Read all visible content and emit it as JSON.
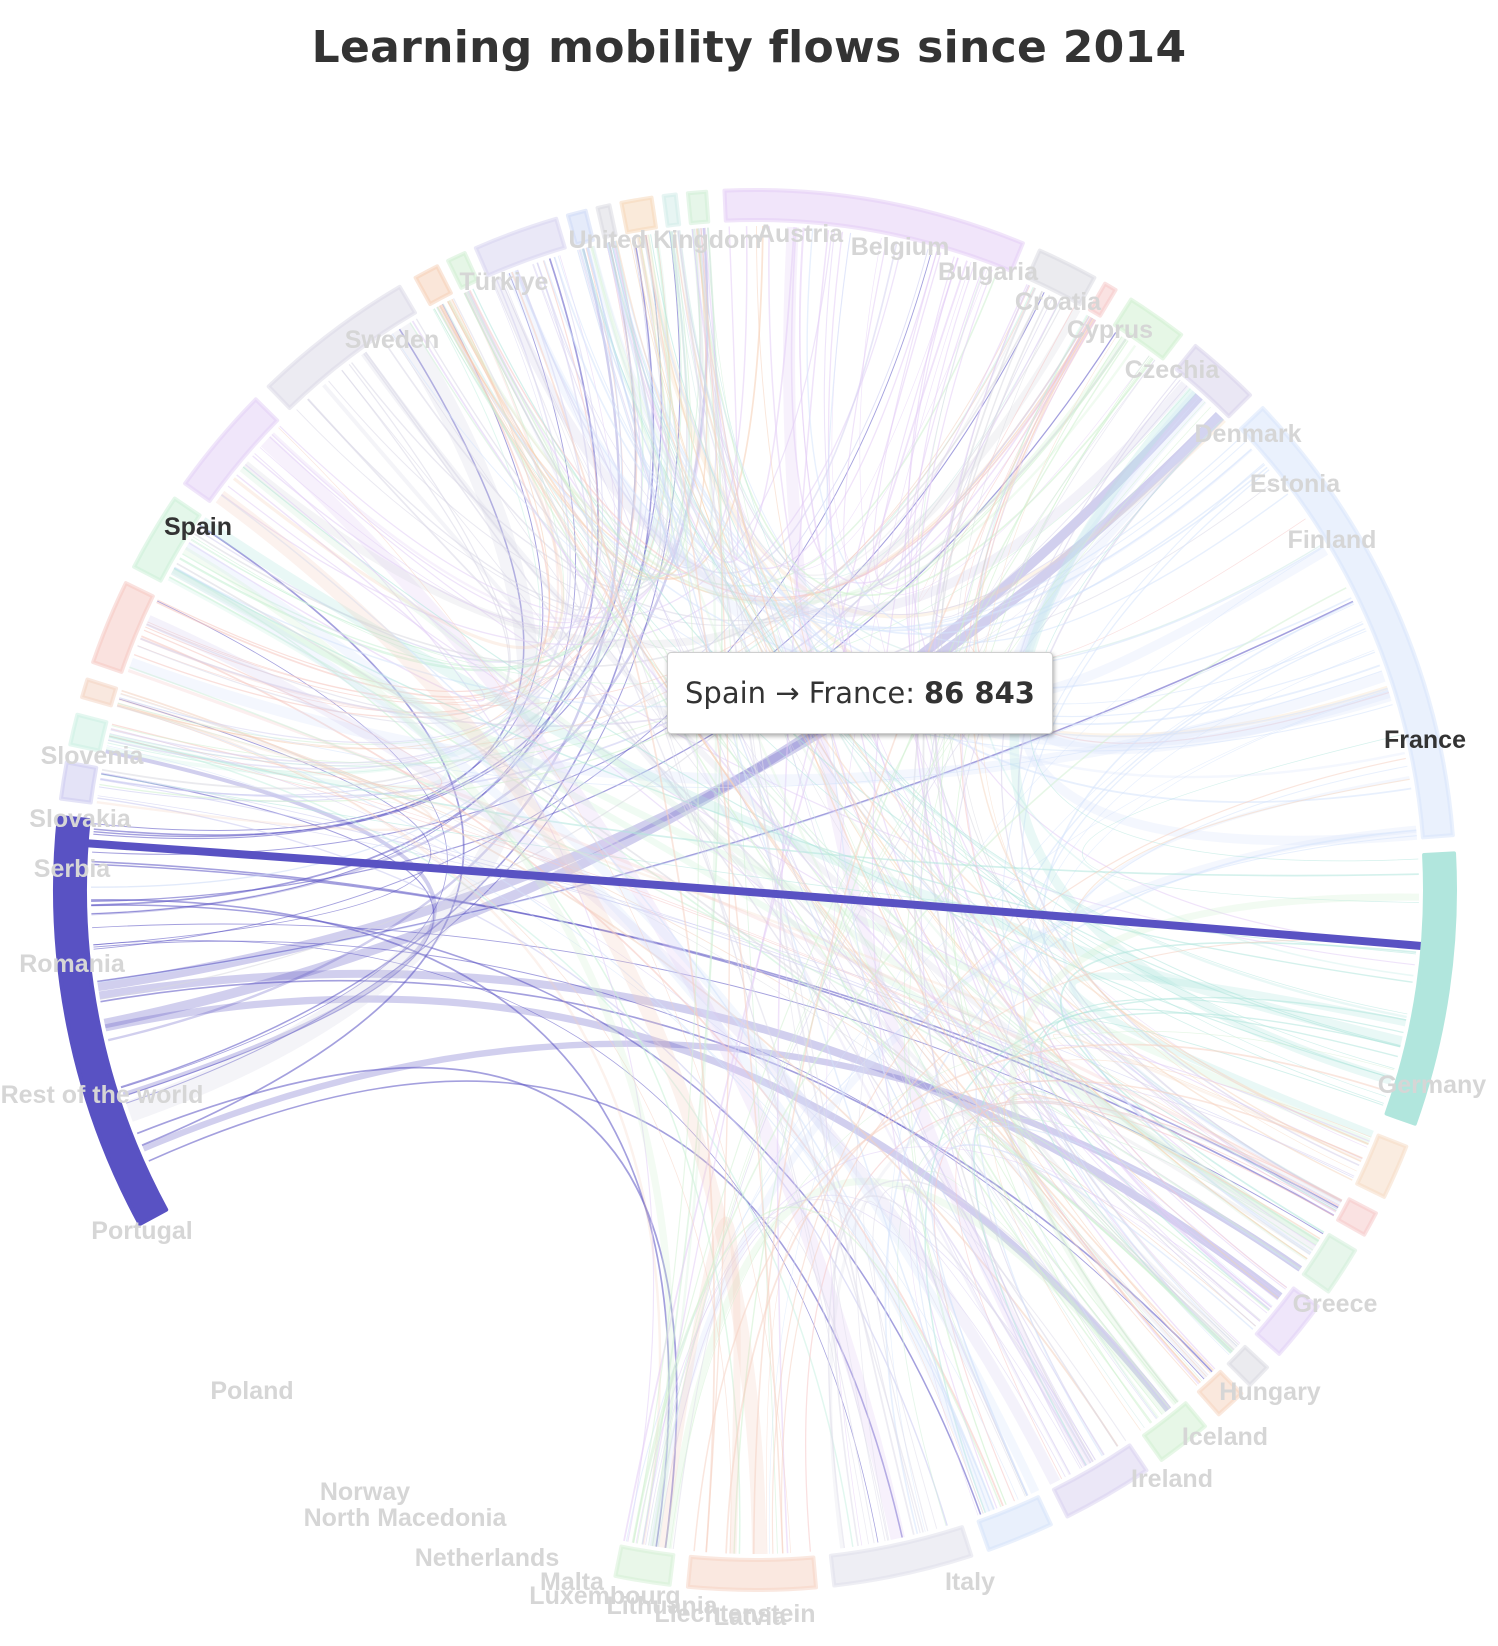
{
  "title": "Learning mobility flows since 2014",
  "tooltip": {
    "label": "Spain → France:",
    "value": "86 843"
  },
  "chart_data": {
    "type": "chord",
    "title": "Learning mobility flows since 2014",
    "highlight": {
      "from": "Spain",
      "to": "France",
      "value": 86843
    },
    "nodes": [
      {
        "name": "Spain",
        "a0": 241.5,
        "a1": 276.0,
        "color": "#5952c3"
      },
      {
        "name": "Slovenia",
        "a0": 277.5,
        "a1": 280.5,
        "color": "#c9c8f0"
      },
      {
        "name": "Slovakia",
        "a0": 282.0,
        "a1": 284.5,
        "color": "#c9f0e1"
      },
      {
        "name": "Serbia",
        "a0": 286.0,
        "a1": 287.5,
        "color": "#f3d2c0"
      },
      {
        "name": "Romania",
        "a0": 289.0,
        "a1": 296.0,
        "color": "#f6c6c0"
      },
      {
        "name": "Rest of the world",
        "a0": 297.5,
        "a1": 304.0,
        "color": "#c9f0d5"
      },
      {
        "name": "Portugal",
        "a0": 305.5,
        "a1": 314.5,
        "color": "#e1cdf5"
      },
      {
        "name": "Poland",
        "a0": 316.0,
        "a1": 329.5,
        "color": "#d9d7e6"
      },
      {
        "name": "Norway",
        "a0": 331.0,
        "a1": 333.0,
        "color": "#f6cdb3"
      },
      {
        "name": "North Macedonia",
        "a0": 334.0,
        "a1": 335.5,
        "color": "#cdeed0"
      },
      {
        "name": "Netherlands",
        "a0": 336.5,
        "a1": 343.5,
        "color": "#d5d1f0"
      },
      {
        "name": "Malta",
        "a0": 344.5,
        "a1": 346.0,
        "color": "#cbd8f5"
      },
      {
        "name": "Luxembourg",
        "a0": 347.0,
        "a1": 348.0,
        "color": "#d8d8e0"
      },
      {
        "name": "Lithuania",
        "a0": 349.0,
        "a1": 351.5,
        "color": "#f6d6b5"
      },
      {
        "name": "Liechtenstein",
        "a0": 352.5,
        "a1": 353.5,
        "color": "#d0ebe8"
      },
      {
        "name": "Latvia",
        "a0": 354.5,
        "a1": 356.0,
        "color": "#cdeed3"
      },
      {
        "name": "Italy",
        "a0": 357.5,
        "a1": 382.5,
        "color": "#e3ccf5"
      },
      {
        "name": "Ireland",
        "a0": 384.0,
        "a1": 389.0,
        "color": "#d8d8e0"
      },
      {
        "name": "Iceland",
        "a0": 390.0,
        "a1": 391.0,
        "color": "#f6c6c6"
      },
      {
        "name": "Hungary",
        "a0": 392.5,
        "a1": 397.5,
        "color": "#cdf0cd"
      },
      {
        "name": "Greece",
        "a0": 399.0,
        "a1": 405.0,
        "color": "#d5cfea"
      },
      {
        "name": "Germany",
        "a0": 406.5,
        "a1": 445.5,
        "color": "#d6e4fb"
      },
      {
        "name": "France",
        "a0": 447.0,
        "a1": 469.5,
        "color": "#b1e6dd"
      },
      {
        "name": "Finland",
        "a0": 471.5,
        "a1": 476.0,
        "color": "#f6d9c2"
      },
      {
        "name": "Estonia",
        "a0": 477.5,
        "a1": 479.5,
        "color": "#f6c6c6"
      },
      {
        "name": "Denmark",
        "a0": 481.0,
        "a1": 485.0,
        "color": "#d0eed8"
      },
      {
        "name": "Czechia",
        "a0": 486.5,
        "a1": 491.5,
        "color": "#e0cdf5"
      },
      {
        "name": "Cyprus",
        "a0": 493.0,
        "a1": 495.0,
        "color": "#d8d8e0"
      },
      {
        "name": "Croatia",
        "a0": 496.0,
        "a1": 498.5,
        "color": "#f6d2bc"
      },
      {
        "name": "Bulgaria",
        "a0": 500.0,
        "a1": 504.5,
        "color": "#d0f0d0"
      },
      {
        "name": "Belgium",
        "a0": 506.0,
        "a1": 513.5,
        "color": "#d8d0f0"
      },
      {
        "name": "Austria",
        "a0": 515.0,
        "a1": 520.5,
        "color": "#d3e1fa"
      },
      {
        "name": "United Kingdom",
        "a0": 522.0,
        "a1": 533.5,
        "color": "#dedde9"
      },
      {
        "name": "Türkiye",
        "a0": 535.0,
        "a1": 545.5,
        "color": "#f6d2c2"
      },
      {
        "name": "Sweden",
        "a0": 547.0,
        "a1": 551.5,
        "color": "#d3f0d3"
      }
    ],
    "labels": [
      {
        "text": "Spain"
      },
      {
        "text": "France"
      },
      {
        "text": "Germany"
      },
      {
        "text": "Greece"
      },
      {
        "text": "Hungary"
      },
      {
        "text": "Iceland"
      },
      {
        "text": "Ireland"
      },
      {
        "text": "Italy"
      },
      {
        "text": "Liechtenstein"
      },
      {
        "text": "Latvia"
      },
      {
        "text": "Lithuania"
      },
      {
        "text": "Luxembourg"
      },
      {
        "text": "Malta"
      },
      {
        "text": "Netherlands"
      },
      {
        "text": "North Macedonia"
      },
      {
        "text": "Norway"
      },
      {
        "text": "Poland"
      },
      {
        "text": "Portugal"
      },
      {
        "text": "Rest of the world"
      },
      {
        "text": "Romania"
      },
      {
        "text": "Serbia"
      },
      {
        "text": "Slovakia"
      },
      {
        "text": "Slovenia"
      },
      {
        "text": "Sweden"
      },
      {
        "text": "Türkiye"
      },
      {
        "text": "United Kingdom"
      },
      {
        "text": "Austria"
      },
      {
        "text": "Belgium"
      },
      {
        "text": "Bulgaria"
      },
      {
        "text": "Croatia"
      },
      {
        "text": "Cyprus"
      },
      {
        "text": "Czechia"
      },
      {
        "text": "Denmark"
      },
      {
        "text": "Estonia"
      },
      {
        "text": "Finland"
      }
    ]
  }
}
